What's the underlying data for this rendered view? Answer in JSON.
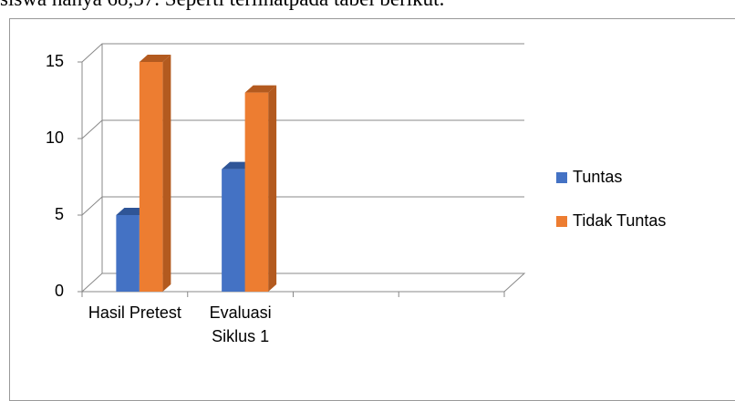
{
  "page_text": "siswa hanya 68,57. Seperti terlihatpada tabel berikut.",
  "chart_data": {
    "type": "bar3d",
    "categories": [
      "Hasil Pretest",
      "Evaluasi Siklus 1",
      null,
      null
    ],
    "series": [
      {
        "name": "Tuntas",
        "color": "#4472c4",
        "side": "#2f5597",
        "values": [
          5,
          8,
          null,
          null
        ]
      },
      {
        "name": "Tidak Tuntas",
        "color": "#ed7d31",
        "side": "#b35a1f",
        "values": [
          15,
          13,
          null,
          null
        ]
      }
    ],
    "ylim": [
      0,
      15
    ],
    "yticks": [
      0,
      5,
      10,
      15
    ],
    "grid": true,
    "legend": "right"
  }
}
